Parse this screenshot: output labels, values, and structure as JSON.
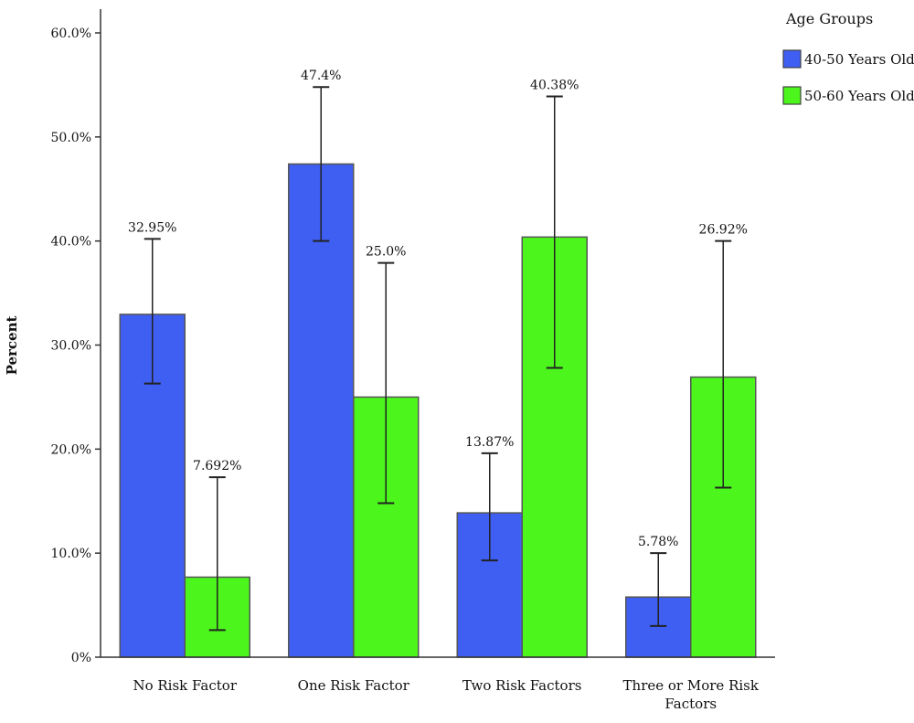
{
  "chart_data": {
    "type": "bar",
    "title": "",
    "xlabel": "",
    "ylabel": "Percent",
    "ylim": [
      0,
      60
    ],
    "yticks": [
      {
        "value": 0,
        "label": "0%"
      },
      {
        "value": 10,
        "label": "10.0%"
      },
      {
        "value": 20,
        "label": "20.0%"
      },
      {
        "value": 30,
        "label": "30.0%"
      },
      {
        "value": 40,
        "label": "40.0%"
      },
      {
        "value": 50,
        "label": "50.0%"
      },
      {
        "value": 60,
        "label": "60.0%"
      }
    ],
    "categories": [
      [
        "No Risk Factor"
      ],
      [
        "One Risk Factor"
      ],
      [
        "Two Risk Factors"
      ],
      [
        "Three or More Risk",
        "Factors"
      ]
    ],
    "legend": {
      "title": "Age Groups",
      "position": "top-right"
    },
    "series": [
      {
        "name": "40-50 Years Old",
        "color": "#3f5ef2",
        "values": [
          32.95,
          47.4,
          13.87,
          5.78
        ],
        "labels": [
          "32.95%",
          "47.4%",
          "13.87%",
          "5.78%"
        ],
        "error_low": [
          26.3,
          40.0,
          9.3,
          3.0
        ],
        "error_high": [
          40.2,
          54.8,
          19.6,
          10.0
        ]
      },
      {
        "name": "50-60 Years Old",
        "color": "#4cf51c",
        "values": [
          7.692,
          25.0,
          40.38,
          26.92
        ],
        "labels": [
          "7.692%",
          "25.0%",
          "40.38%",
          "26.92%"
        ],
        "error_low": [
          2.6,
          14.8,
          27.8,
          16.3
        ],
        "error_high": [
          17.3,
          37.9,
          53.9,
          40.0
        ]
      }
    ],
    "grid": false
  }
}
